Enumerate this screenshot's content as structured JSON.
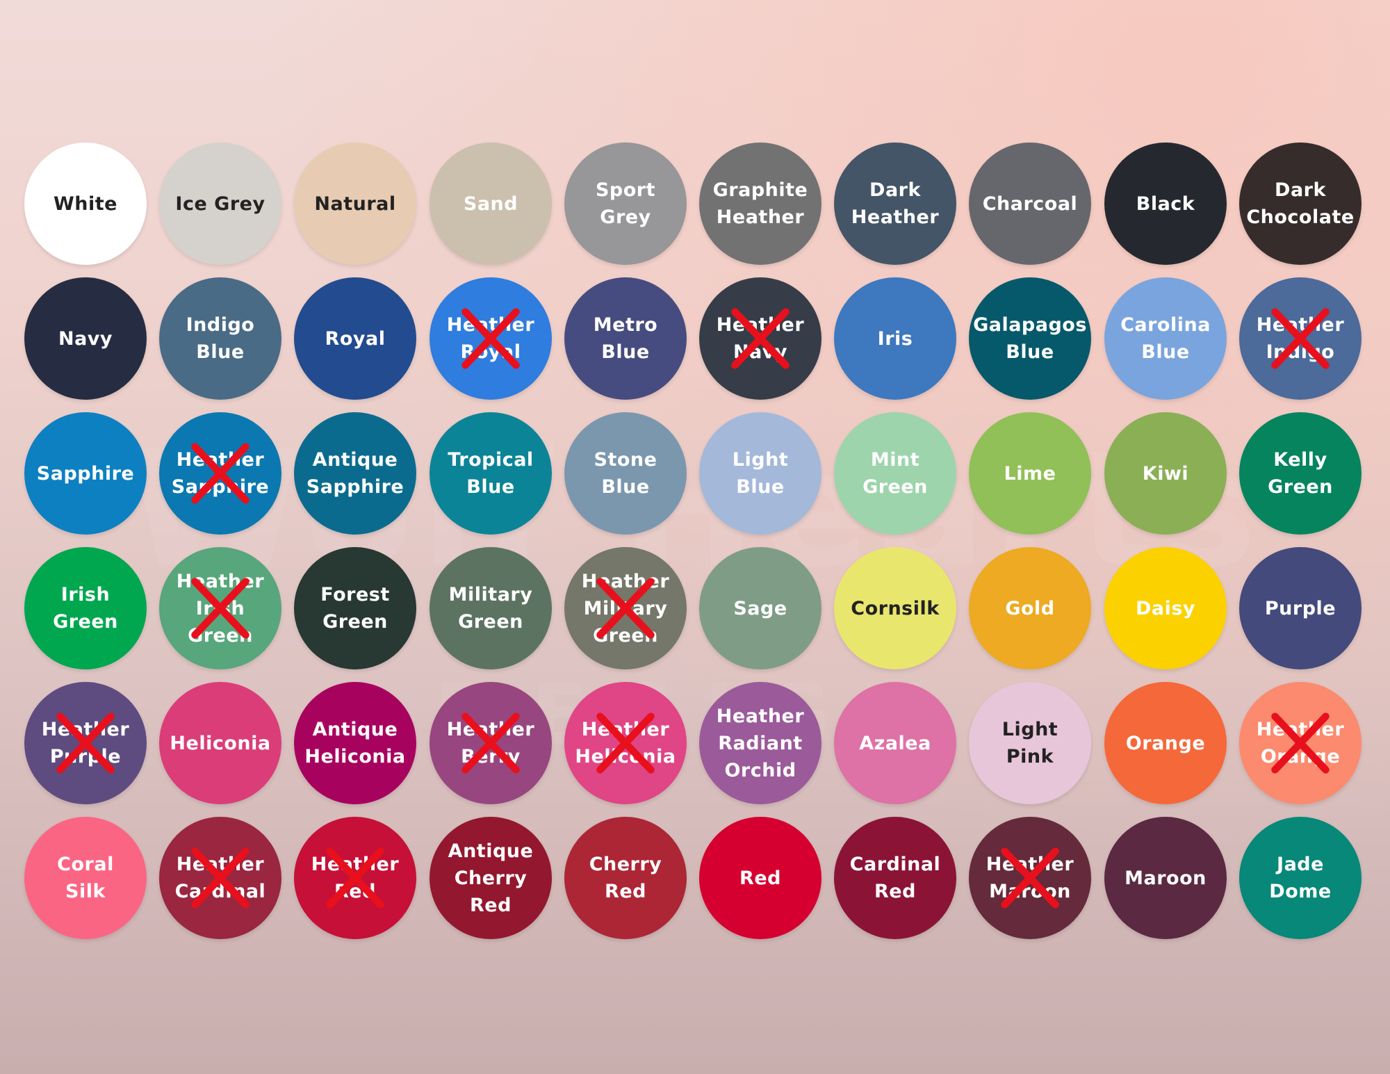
{
  "swatches": [
    {
      "label": "White",
      "color": "#ffffff",
      "text_color": "#222222",
      "crossed": false
    },
    {
      "label": "Ice Grey",
      "color": "#d5d1cc",
      "text_color": "#222222",
      "crossed": false
    },
    {
      "label": "Natural",
      "color": "#e8cbb3",
      "text_color": "#222222",
      "crossed": false
    },
    {
      "label": "Sand",
      "color": "#cbbfae",
      "text_color": "#ffffff",
      "crossed": false
    },
    {
      "label": "Sport Grey",
      "color": "#979699",
      "text_color": "#ffffff",
      "crossed": false
    },
    {
      "label": "Graphite\nHeather",
      "color": "#727273",
      "text_color": "#ffffff",
      "crossed": false
    },
    {
      "label": "Dark\nHeather",
      "color": "#435566",
      "text_color": "#ffffff",
      "crossed": false
    },
    {
      "label": "Charcoal",
      "color": "#66676c",
      "text_color": "#ffffff",
      "crossed": false
    },
    {
      "label": "Black",
      "color": "#25292f",
      "text_color": "#ffffff",
      "crossed": false
    },
    {
      "label": "Dark\nChocolate",
      "color": "#372c2c",
      "text_color": "#ffffff",
      "crossed": false
    },
    {
      "label": "Navy",
      "color": "#262d42",
      "text_color": "#ffffff",
      "crossed": false
    },
    {
      "label": "Indigo\nBlue",
      "color": "#4a6b86",
      "text_color": "#ffffff",
      "crossed": false
    },
    {
      "label": "Royal",
      "color": "#234b8f",
      "text_color": "#ffffff",
      "crossed": false
    },
    {
      "label": "Heather\nRoyal",
      "color": "#2f7ddf",
      "text_color": "#ffffff",
      "crossed": true
    },
    {
      "label": "Metro\nBlue",
      "color": "#464c7f",
      "text_color": "#ffffff",
      "crossed": false
    },
    {
      "label": "Heather\nNavy",
      "color": "#363d48",
      "text_color": "#ffffff",
      "crossed": true
    },
    {
      "label": "Iris",
      "color": "#3e78be",
      "text_color": "#ffffff",
      "crossed": false
    },
    {
      "label": "Galapagos\nBlue",
      "color": "#06596a",
      "text_color": "#ffffff",
      "crossed": false
    },
    {
      "label": "Carolina\nBlue",
      "color": "#7aa4dd",
      "text_color": "#ffffff",
      "crossed": false
    },
    {
      "label": "Heather\nIndigo",
      "color": "#4c6a9a",
      "text_color": "#ffffff",
      "crossed": true
    },
    {
      "label": "Sapphire",
      "color": "#0d80c1",
      "text_color": "#ffffff",
      "crossed": false
    },
    {
      "label": "Heather\nSapphire",
      "color": "#0b78b1",
      "text_color": "#ffffff",
      "crossed": true
    },
    {
      "label": "Antique\nSapphire",
      "color": "#0b6b8e",
      "text_color": "#ffffff",
      "crossed": false
    },
    {
      "label": "Tropical\nBlue",
      "color": "#0c8497",
      "text_color": "#ffffff",
      "crossed": false
    },
    {
      "label": "Stone\nBlue",
      "color": "#7b97ae",
      "text_color": "#ffffff",
      "crossed": false
    },
    {
      "label": "Light\nBlue",
      "color": "#a4b8d9",
      "text_color": "#ffffff",
      "crossed": false
    },
    {
      "label": "Mint\nGreen",
      "color": "#9dd4ac",
      "text_color": "#ffffff",
      "crossed": false
    },
    {
      "label": "Lime",
      "color": "#90c057",
      "text_color": "#ffffff",
      "crossed": false
    },
    {
      "label": "Kiwi",
      "color": "#8aaf55",
      "text_color": "#ffffff",
      "crossed": false
    },
    {
      "label": "Kelly\nGreen",
      "color": "#06845e",
      "text_color": "#ffffff",
      "crossed": false
    },
    {
      "label": "Irish\nGreen",
      "color": "#00a74f",
      "text_color": "#ffffff",
      "crossed": false
    },
    {
      "label": "Heather\nIrish\nGreen",
      "color": "#58a67b",
      "text_color": "#ffffff",
      "crossed": true
    },
    {
      "label": "Forest\nGreen",
      "color": "#283832",
      "text_color": "#ffffff",
      "crossed": false
    },
    {
      "label": "Military\nGreen",
      "color": "#5c7362",
      "text_color": "#ffffff",
      "crossed": false
    },
    {
      "label": "Heather\nMilitary\nGreen",
      "color": "#747769",
      "text_color": "#ffffff",
      "crossed": true
    },
    {
      "label": "Sage",
      "color": "#7f9c87",
      "text_color": "#ffffff",
      "crossed": false
    },
    {
      "label": "Cornsilk",
      "color": "#e9e66e",
      "text_color": "#222222",
      "crossed": false
    },
    {
      "label": "Gold",
      "color": "#edaa22",
      "text_color": "#ffffff",
      "crossed": false
    },
    {
      "label": "Daisy",
      "color": "#fcd100",
      "text_color": "#ffffff",
      "crossed": false
    },
    {
      "label": "Purple",
      "color": "#444a7b",
      "text_color": "#ffffff",
      "crossed": false
    },
    {
      "label": "Heather\nPurple",
      "color": "#5e4b80",
      "text_color": "#ffffff",
      "crossed": true
    },
    {
      "label": "Heliconia",
      "color": "#db3d78",
      "text_color": "#ffffff",
      "crossed": false
    },
    {
      "label": "Antique\nHeliconia",
      "color": "#a8025f",
      "text_color": "#ffffff",
      "crossed": false
    },
    {
      "label": "Heather\nBerry",
      "color": "#97467f",
      "text_color": "#ffffff",
      "crossed": true
    },
    {
      "label": "Heather\nHeliconia",
      "color": "#e04585",
      "text_color": "#ffffff",
      "crossed": true
    },
    {
      "label": "Heather\nRadiant\nOrchid",
      "color": "#9b5a9a",
      "text_color": "#ffffff",
      "crossed": false
    },
    {
      "label": "Azalea",
      "color": "#de71a5",
      "text_color": "#ffffff",
      "crossed": false
    },
    {
      "label": "Light\nPink",
      "color": "#e8c6d9",
      "text_color": "#222222",
      "crossed": false
    },
    {
      "label": "Orange",
      "color": "#f5683a",
      "text_color": "#ffffff",
      "crossed": false
    },
    {
      "label": "Heather\nOrange",
      "color": "#fb8a6e",
      "text_color": "#ffffff",
      "crossed": true
    },
    {
      "label": "Coral\nSilk",
      "color": "#fb6584",
      "text_color": "#ffffff",
      "crossed": false
    },
    {
      "label": "Heather\nCardinal",
      "color": "#9a2640",
      "text_color": "#ffffff",
      "crossed": true
    },
    {
      "label": "Heather\nRed",
      "color": "#c61038",
      "text_color": "#ffffff",
      "crossed": true
    },
    {
      "label": "Antique\nCherry\nRed",
      "color": "#93172e",
      "text_color": "#ffffff",
      "crossed": false
    },
    {
      "label": "Cherry\nRed",
      "color": "#ac2635",
      "text_color": "#ffffff",
      "crossed": false
    },
    {
      "label": "Red",
      "color": "#d5002f",
      "text_color": "#ffffff",
      "crossed": false
    },
    {
      "label": "Cardinal\nRed",
      "color": "#8b1336",
      "text_color": "#ffffff",
      "crossed": false
    },
    {
      "label": "Heather\nMaroon",
      "color": "#652a3b",
      "text_color": "#ffffff",
      "crossed": true
    },
    {
      "label": "Maroon",
      "color": "#5b2941",
      "text_color": "#ffffff",
      "crossed": false
    },
    {
      "label": "Jade\nDome",
      "color": "#078879",
      "text_color": "#ffffff",
      "crossed": false
    }
  ],
  "watermark": {
    "text": "Wolf Hearts",
    "subtext": "DESIGN"
  },
  "colors": {
    "cross": "#e8101c"
  }
}
